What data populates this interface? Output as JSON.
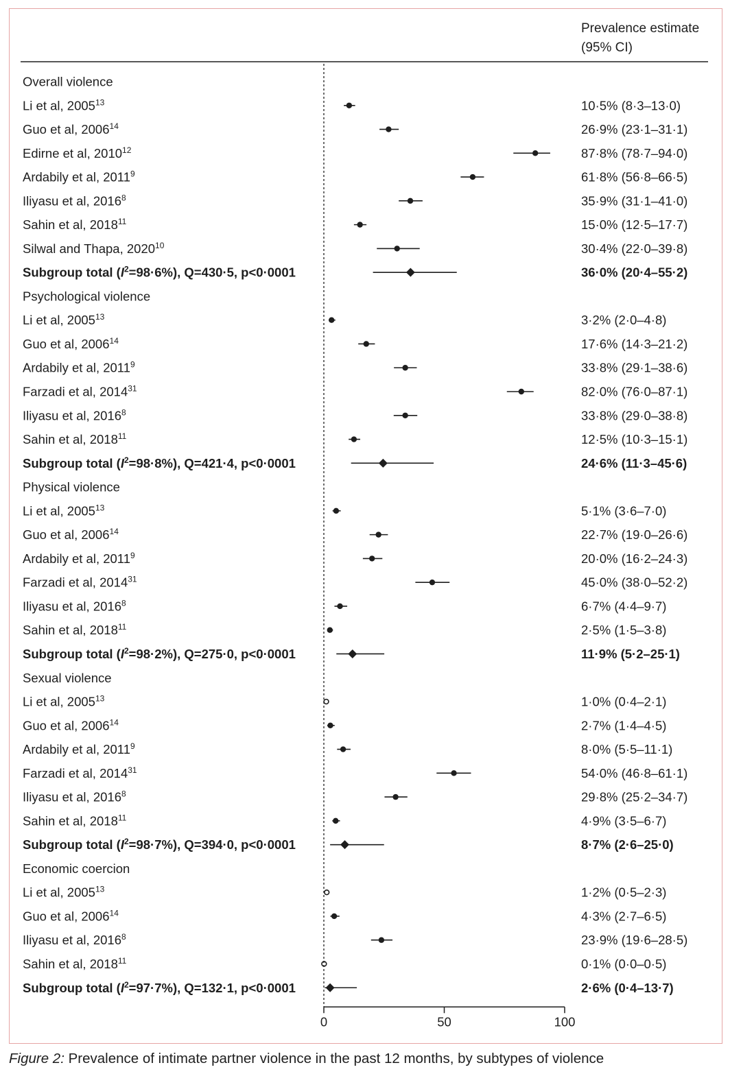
{
  "chart_data": {
    "type": "forest",
    "title": "",
    "header": {
      "estimate_line1": "Prevalence estimate",
      "estimate_line2": "(95% CI)"
    },
    "xlim": [
      0,
      100
    ],
    "x_ticks": [
      "0",
      "50",
      "100"
    ],
    "xlabel": "",
    "ylabel": "",
    "groups": [
      {
        "name": "Overall violence",
        "studies": [
          {
            "label": "Li et al, 2005",
            "ref": "13",
            "estimate": 10.5,
            "lower": 8.3,
            "upper": 13.0,
            "text": "10·5% (8·3–13·0)",
            "marker": "filled"
          },
          {
            "label": "Guo et al, 2006",
            "ref": "14",
            "estimate": 26.9,
            "lower": 23.1,
            "upper": 31.1,
            "text": "26·9% (23·1–31·1)",
            "marker": "filled"
          },
          {
            "label": "Edirne et al, 2010",
            "ref": "12",
            "estimate": 87.8,
            "lower": 78.7,
            "upper": 94.0,
            "text": "87·8% (78·7–94·0)",
            "marker": "filled"
          },
          {
            "label": "Ardabily et al, 2011",
            "ref": "9",
            "estimate": 61.8,
            "lower": 56.8,
            "upper": 66.5,
            "text": "61·8% (56·8–66·5)",
            "marker": "filled"
          },
          {
            "label": "Iliyasu et al, 2016",
            "ref": "8",
            "estimate": 35.9,
            "lower": 31.1,
            "upper": 41.0,
            "text": "35·9% (31·1–41·0)",
            "marker": "filled"
          },
          {
            "label": "Sahin et al, 2018",
            "ref": "11",
            "estimate": 15.0,
            "lower": 12.5,
            "upper": 17.7,
            "text": "15·0% (12·5–17·7)",
            "marker": "filled"
          },
          {
            "label": "Silwal and Thapa, 2020",
            "ref": "10",
            "estimate": 30.4,
            "lower": 22.0,
            "upper": 39.8,
            "text": "30·4% (22·0–39·8)",
            "marker": "filled"
          }
        ],
        "subtotal": {
          "label_prefix": "Subgroup total (",
          "label_i": "I",
          "label_sup": "2",
          "label_suffix": "=98·6%), Q=430·5, p<0·0001",
          "estimate": 36.0,
          "lower": 20.4,
          "upper": 55.2,
          "text": "36·0% (20·4–55·2)"
        }
      },
      {
        "name": "Psychological violence",
        "studies": [
          {
            "label": "Li et al, 2005",
            "ref": "13",
            "estimate": 3.2,
            "lower": 2.0,
            "upper": 4.8,
            "text": "3·2% (2·0–4·8)",
            "marker": "filled"
          },
          {
            "label": "Guo et al, 2006",
            "ref": "14",
            "estimate": 17.6,
            "lower": 14.3,
            "upper": 21.2,
            "text": "17·6% (14·3–21·2)",
            "marker": "filled"
          },
          {
            "label": "Ardabily et al, 2011",
            "ref": "9",
            "estimate": 33.8,
            "lower": 29.1,
            "upper": 38.6,
            "text": "33·8% (29·1–38·6)",
            "marker": "filled"
          },
          {
            "label": "Farzadi et al, 2014",
            "ref": "31",
            "estimate": 82.0,
            "lower": 76.0,
            "upper": 87.1,
            "text": "82·0% (76·0–87·1)",
            "marker": "filled"
          },
          {
            "label": "Iliyasu et al, 2016",
            "ref": "8",
            "estimate": 33.8,
            "lower": 29.0,
            "upper": 38.8,
            "text": "33·8% (29·0–38·8)",
            "marker": "filled"
          },
          {
            "label": "Sahin et al, 2018",
            "ref": "11",
            "estimate": 12.5,
            "lower": 10.3,
            "upper": 15.1,
            "text": "12·5% (10·3–15·1)",
            "marker": "filled"
          }
        ],
        "subtotal": {
          "label_prefix": "Subgroup total (",
          "label_i": "I",
          "label_sup": "2",
          "label_suffix": "=98·8%), Q=421·4, p<0·0001",
          "estimate": 24.6,
          "lower": 11.3,
          "upper": 45.6,
          "text": "24·6% (11·3–45·6)"
        }
      },
      {
        "name": "Physical violence",
        "studies": [
          {
            "label": "Li et al, 2005",
            "ref": "13",
            "estimate": 5.1,
            "lower": 3.6,
            "upper": 7.0,
            "text": "5·1% (3·6–7·0)",
            "marker": "filled"
          },
          {
            "label": "Guo et al, 2006",
            "ref": "14",
            "estimate": 22.7,
            "lower": 19.0,
            "upper": 26.6,
            "text": "22·7% (19·0–26·6)",
            "marker": "filled"
          },
          {
            "label": "Ardabily et al, 2011",
            "ref": "9",
            "estimate": 20.0,
            "lower": 16.2,
            "upper": 24.3,
            "text": "20·0% (16·2–24·3)",
            "marker": "filled"
          },
          {
            "label": "Farzadi et al, 2014",
            "ref": "31",
            "estimate": 45.0,
            "lower": 38.0,
            "upper": 52.2,
            "text": "45·0% (38·0–52·2)",
            "marker": "filled"
          },
          {
            "label": "Iliyasu et al, 2016",
            "ref": "8",
            "estimate": 6.7,
            "lower": 4.4,
            "upper": 9.7,
            "text": "6·7% (4·4–9·7)",
            "marker": "filled"
          },
          {
            "label": "Sahin et al, 2018",
            "ref": "11",
            "estimate": 2.5,
            "lower": 1.5,
            "upper": 3.8,
            "text": "2·5% (1·5–3·8)",
            "marker": "filled"
          }
        ],
        "subtotal": {
          "label_prefix": "Subgroup total (",
          "label_i": "I",
          "label_sup": "2",
          "label_suffix": "=98·2%), Q=275·0, p<0·0001",
          "estimate": 11.9,
          "lower": 5.2,
          "upper": 25.1,
          "text": "11·9% (5·2–25·1)"
        }
      },
      {
        "name": "Sexual violence",
        "studies": [
          {
            "label": "Li et al, 2005",
            "ref": "13",
            "estimate": 1.0,
            "lower": 0.4,
            "upper": 2.1,
            "text": "1·0% (0·4–2·1)",
            "marker": "open"
          },
          {
            "label": "Guo et al, 2006",
            "ref": "14",
            "estimate": 2.7,
            "lower": 1.4,
            "upper": 4.5,
            "text": "2·7% (1·4–4·5)",
            "marker": "filled"
          },
          {
            "label": "Ardabily et al, 2011",
            "ref": "9",
            "estimate": 8.0,
            "lower": 5.5,
            "upper": 11.1,
            "text": "8·0% (5·5–11·1)",
            "marker": "filled"
          },
          {
            "label": "Farzadi et al, 2014",
            "ref": "31",
            "estimate": 54.0,
            "lower": 46.8,
            "upper": 61.1,
            "text": "54·0% (46·8–61·1)",
            "marker": "filled"
          },
          {
            "label": "Iliyasu et al, 2016",
            "ref": "8",
            "estimate": 29.8,
            "lower": 25.2,
            "upper": 34.7,
            "text": "29·8% (25·2–34·7)",
            "marker": "filled"
          },
          {
            "label": "Sahin et al, 2018",
            "ref": "11",
            "estimate": 4.9,
            "lower": 3.5,
            "upper": 6.7,
            "text": "4·9% (3·5–6·7)",
            "marker": "filled"
          }
        ],
        "subtotal": {
          "label_prefix": "Subgroup total (",
          "label_i": "I",
          "label_sup": "2",
          "label_suffix": "=98·7%), Q=394·0, p<0·0001",
          "estimate": 8.7,
          "lower": 2.6,
          "upper": 25.0,
          "text": "8·7% (2·6–25·0)"
        }
      },
      {
        "name": "Economic coercion",
        "studies": [
          {
            "label": "Li et al, 2005",
            "ref": "13",
            "estimate": 1.2,
            "lower": 0.5,
            "upper": 2.3,
            "text": "1·2% (0·5–2·3)",
            "marker": "open"
          },
          {
            "label": "Guo et al, 2006",
            "ref": "14",
            "estimate": 4.3,
            "lower": 2.7,
            "upper": 6.5,
            "text": "4·3% (2·7–6·5)",
            "marker": "filled"
          },
          {
            "label": "Iliyasu et al, 2016",
            "ref": "8",
            "estimate": 23.9,
            "lower": 19.6,
            "upper": 28.5,
            "text": "23·9% (19·6–28·5)",
            "marker": "filled"
          },
          {
            "label": "Sahin et al, 2018",
            "ref": "11",
            "estimate": 0.1,
            "lower": 0.0,
            "upper": 0.5,
            "text": "0·1% (0·0–0·5)",
            "marker": "open"
          }
        ],
        "subtotal": {
          "label_prefix": "Subgroup total (",
          "label_i": "I",
          "label_sup": "2",
          "label_suffix": "=97·7%), Q=132·1, p<0·0001",
          "estimate": 2.6,
          "lower": 0.4,
          "upper": 13.7,
          "text": "2·6% (0·4–13·7)"
        }
      }
    ]
  },
  "caption": {
    "figure_label": "Figure 2:",
    "text": " Prevalence of intimate partner violence in the past 12 months, by subtypes of violence"
  },
  "colors": {
    "border": "#e6a5a5",
    "ink": "#1e1e1e"
  }
}
